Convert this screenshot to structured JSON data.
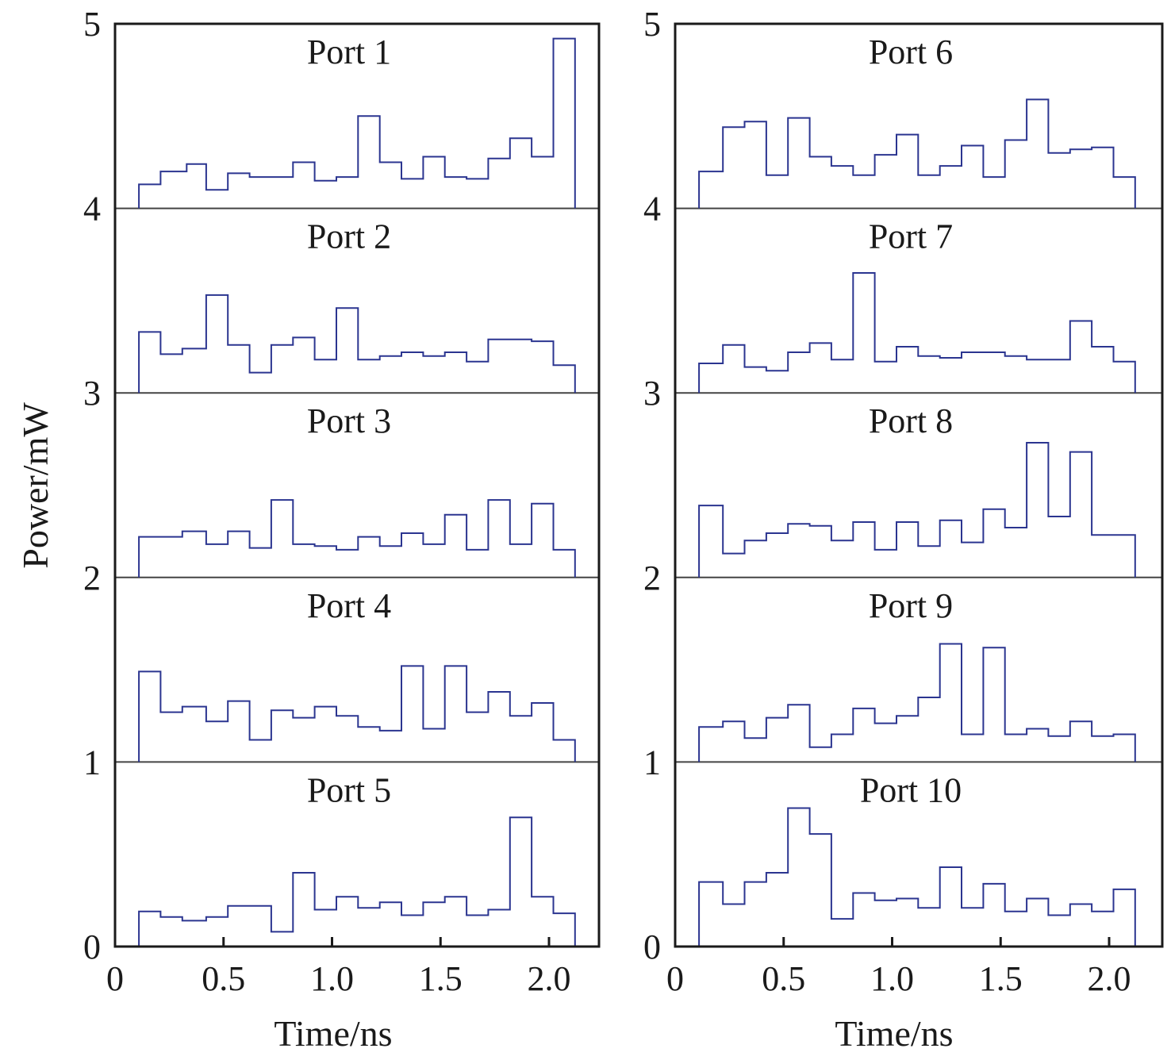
{
  "chart_data": [
    {
      "type": "line",
      "panel": "left",
      "xlabel": "Time/ns",
      "ylabel": "Power/mW",
      "xlim": [
        0,
        2.23
      ],
      "ylim": [
        0,
        5
      ],
      "xticks": [
        0,
        0.5,
        1.0,
        1.5,
        2.0
      ],
      "xtick_labels": [
        "0",
        "0.5",
        "1.0",
        "1.5",
        "2.0"
      ],
      "yticks": [
        0,
        1,
        2,
        3,
        4,
        5
      ],
      "ytick_labels": [
        "0",
        "1",
        "2",
        "3",
        "4",
        "5"
      ],
      "grid": false,
      "series": [
        {
          "name": "Port 1",
          "baseline": 4,
          "steps": [
            [
              0.11,
              4.13
            ],
            [
              0.21,
              4.2
            ],
            [
              0.33,
              4.24
            ],
            [
              0.42,
              4.1
            ],
            [
              0.52,
              4.19
            ],
            [
              0.62,
              4.17
            ],
            [
              0.72,
              4.17
            ],
            [
              0.82,
              4.25
            ],
            [
              0.92,
              4.15
            ],
            [
              1.02,
              4.17
            ],
            [
              1.12,
              4.5
            ],
            [
              1.22,
              4.25
            ],
            [
              1.32,
              4.16
            ],
            [
              1.42,
              4.28
            ],
            [
              1.52,
              4.17
            ],
            [
              1.62,
              4.16
            ],
            [
              1.72,
              4.27
            ],
            [
              1.82,
              4.38
            ],
            [
              1.92,
              4.28
            ],
            [
              2.02,
              4.92
            ],
            [
              2.12,
              4.0
            ]
          ]
        },
        {
          "name": "Port 2",
          "baseline": 3,
          "steps": [
            [
              0.11,
              3.33
            ],
            [
              0.21,
              3.21
            ],
            [
              0.31,
              3.24
            ],
            [
              0.42,
              3.53
            ],
            [
              0.52,
              3.26
            ],
            [
              0.62,
              3.11
            ],
            [
              0.72,
              3.26
            ],
            [
              0.82,
              3.3
            ],
            [
              0.92,
              3.18
            ],
            [
              1.02,
              3.46
            ],
            [
              1.12,
              3.18
            ],
            [
              1.22,
              3.2
            ],
            [
              1.32,
              3.22
            ],
            [
              1.42,
              3.2
            ],
            [
              1.52,
              3.22
            ],
            [
              1.62,
              3.17
            ],
            [
              1.72,
              3.29
            ],
            [
              1.82,
              3.29
            ],
            [
              1.92,
              3.28
            ],
            [
              2.02,
              3.15
            ],
            [
              2.12,
              3.0
            ]
          ]
        },
        {
          "name": "Port 3",
          "baseline": 2,
          "steps": [
            [
              0.11,
              2.22
            ],
            [
              0.21,
              2.22
            ],
            [
              0.31,
              2.25
            ],
            [
              0.42,
              2.18
            ],
            [
              0.52,
              2.25
            ],
            [
              0.62,
              2.16
            ],
            [
              0.72,
              2.42
            ],
            [
              0.82,
              2.18
            ],
            [
              0.92,
              2.17
            ],
            [
              1.02,
              2.15
            ],
            [
              1.12,
              2.22
            ],
            [
              1.22,
              2.17
            ],
            [
              1.32,
              2.24
            ],
            [
              1.42,
              2.18
            ],
            [
              1.52,
              2.34
            ],
            [
              1.62,
              2.15
            ],
            [
              1.72,
              2.42
            ],
            [
              1.82,
              2.18
            ],
            [
              1.92,
              2.4
            ],
            [
              2.02,
              2.15
            ],
            [
              2.12,
              2.0
            ]
          ]
        },
        {
          "name": "Port 4",
          "baseline": 1,
          "steps": [
            [
              0.11,
              1.49
            ],
            [
              0.21,
              1.27
            ],
            [
              0.31,
              1.3
            ],
            [
              0.42,
              1.22
            ],
            [
              0.52,
              1.33
            ],
            [
              0.62,
              1.12
            ],
            [
              0.72,
              1.28
            ],
            [
              0.82,
              1.24
            ],
            [
              0.92,
              1.3
            ],
            [
              1.02,
              1.25
            ],
            [
              1.12,
              1.19
            ],
            [
              1.22,
              1.17
            ],
            [
              1.32,
              1.52
            ],
            [
              1.42,
              1.18
            ],
            [
              1.52,
              1.52
            ],
            [
              1.62,
              1.27
            ],
            [
              1.72,
              1.38
            ],
            [
              1.82,
              1.25
            ],
            [
              1.92,
              1.32
            ],
            [
              2.02,
              1.12
            ],
            [
              2.12,
              1.0
            ]
          ]
        },
        {
          "name": "Port 5",
          "baseline": 0,
          "steps": [
            [
              0.11,
              0.19
            ],
            [
              0.21,
              0.16
            ],
            [
              0.31,
              0.14
            ],
            [
              0.42,
              0.16
            ],
            [
              0.52,
              0.22
            ],
            [
              0.62,
              0.22
            ],
            [
              0.72,
              0.08
            ],
            [
              0.82,
              0.4
            ],
            [
              0.92,
              0.2
            ],
            [
              1.02,
              0.27
            ],
            [
              1.12,
              0.21
            ],
            [
              1.22,
              0.24
            ],
            [
              1.32,
              0.17
            ],
            [
              1.42,
              0.24
            ],
            [
              1.52,
              0.27
            ],
            [
              1.62,
              0.17
            ],
            [
              1.72,
              0.2
            ],
            [
              1.82,
              0.7
            ],
            [
              1.92,
              0.27
            ],
            [
              2.02,
              0.18
            ],
            [
              2.12,
              0.0
            ]
          ]
        }
      ]
    },
    {
      "type": "line",
      "panel": "right",
      "xlabel": "Time/ns",
      "ylabel": "",
      "xlim": [
        0,
        2.23
      ],
      "ylim": [
        0,
        5
      ],
      "xticks": [
        0,
        0.5,
        1.0,
        1.5,
        2.0
      ],
      "xtick_labels": [
        "0",
        "0.5",
        "1.0",
        "1.5",
        "2.0"
      ],
      "yticks": [
        0,
        1,
        2,
        3,
        4,
        5
      ],
      "ytick_labels": [
        "0",
        "1",
        "2",
        "3",
        "4",
        "5"
      ],
      "grid": false,
      "series": [
        {
          "name": "Port 6",
          "baseline": 4,
          "steps": [
            [
              0.11,
              4.2
            ],
            [
              0.22,
              4.44
            ],
            [
              0.32,
              4.47
            ],
            [
              0.42,
              4.18
            ],
            [
              0.52,
              4.49
            ],
            [
              0.62,
              4.28
            ],
            [
              0.72,
              4.23
            ],
            [
              0.82,
              4.18
            ],
            [
              0.92,
              4.29
            ],
            [
              1.02,
              4.4
            ],
            [
              1.12,
              4.18
            ],
            [
              1.22,
              4.23
            ],
            [
              1.32,
              4.34
            ],
            [
              1.42,
              4.17
            ],
            [
              1.52,
              4.37
            ],
            [
              1.62,
              4.59
            ],
            [
              1.72,
              4.3
            ],
            [
              1.82,
              4.32
            ],
            [
              1.92,
              4.33
            ],
            [
              2.02,
              4.17
            ],
            [
              2.12,
              4.0
            ]
          ]
        },
        {
          "name": "Port 7",
          "baseline": 3,
          "steps": [
            [
              0.11,
              3.16
            ],
            [
              0.22,
              3.26
            ],
            [
              0.32,
              3.14
            ],
            [
              0.42,
              3.12
            ],
            [
              0.52,
              3.22
            ],
            [
              0.62,
              3.27
            ],
            [
              0.72,
              3.18
            ],
            [
              0.82,
              3.65
            ],
            [
              0.92,
              3.17
            ],
            [
              1.02,
              3.25
            ],
            [
              1.12,
              3.2
            ],
            [
              1.22,
              3.19
            ],
            [
              1.32,
              3.22
            ],
            [
              1.42,
              3.22
            ],
            [
              1.52,
              3.2
            ],
            [
              1.62,
              3.18
            ],
            [
              1.72,
              3.18
            ],
            [
              1.82,
              3.39
            ],
            [
              1.92,
              3.25
            ],
            [
              2.02,
              3.17
            ],
            [
              2.12,
              3.0
            ]
          ]
        },
        {
          "name": "Port 8",
          "baseline": 2,
          "steps": [
            [
              0.11,
              2.39
            ],
            [
              0.22,
              2.13
            ],
            [
              0.32,
              2.2
            ],
            [
              0.42,
              2.24
            ],
            [
              0.52,
              2.29
            ],
            [
              0.62,
              2.28
            ],
            [
              0.72,
              2.2
            ],
            [
              0.82,
              2.3
            ],
            [
              0.92,
              2.15
            ],
            [
              1.02,
              2.3
            ],
            [
              1.12,
              2.17
            ],
            [
              1.22,
              2.31
            ],
            [
              1.32,
              2.19
            ],
            [
              1.42,
              2.37
            ],
            [
              1.52,
              2.27
            ],
            [
              1.62,
              2.73
            ],
            [
              1.72,
              2.33
            ],
            [
              1.82,
              2.68
            ],
            [
              1.92,
              2.23
            ],
            [
              2.02,
              2.23
            ],
            [
              2.12,
              2.0
            ]
          ]
        },
        {
          "name": "Port 9",
          "baseline": 1,
          "steps": [
            [
              0.11,
              1.19
            ],
            [
              0.22,
              1.22
            ],
            [
              0.32,
              1.13
            ],
            [
              0.42,
              1.24
            ],
            [
              0.52,
              1.31
            ],
            [
              0.62,
              1.08
            ],
            [
              0.72,
              1.15
            ],
            [
              0.82,
              1.29
            ],
            [
              0.92,
              1.21
            ],
            [
              1.02,
              1.25
            ],
            [
              1.12,
              1.35
            ],
            [
              1.22,
              1.64
            ],
            [
              1.32,
              1.15
            ],
            [
              1.42,
              1.62
            ],
            [
              1.52,
              1.15
            ],
            [
              1.62,
              1.18
            ],
            [
              1.72,
              1.14
            ],
            [
              1.82,
              1.22
            ],
            [
              1.92,
              1.14
            ],
            [
              2.02,
              1.15
            ],
            [
              2.12,
              1.0
            ]
          ]
        },
        {
          "name": "Port 10",
          "baseline": 0,
          "steps": [
            [
              0.11,
              0.35
            ],
            [
              0.22,
              0.23
            ],
            [
              0.32,
              0.35
            ],
            [
              0.42,
              0.4
            ],
            [
              0.52,
              0.75
            ],
            [
              0.62,
              0.61
            ],
            [
              0.72,
              0.15
            ],
            [
              0.82,
              0.29
            ],
            [
              0.92,
              0.25
            ],
            [
              1.02,
              0.26
            ],
            [
              1.12,
              0.21
            ],
            [
              1.22,
              0.43
            ],
            [
              1.32,
              0.21
            ],
            [
              1.42,
              0.34
            ],
            [
              1.52,
              0.19
            ],
            [
              1.62,
              0.26
            ],
            [
              1.72,
              0.17
            ],
            [
              1.82,
              0.23
            ],
            [
              1.92,
              0.19
            ],
            [
              2.02,
              0.31
            ],
            [
              2.12,
              0.0
            ]
          ]
        }
      ]
    }
  ]
}
